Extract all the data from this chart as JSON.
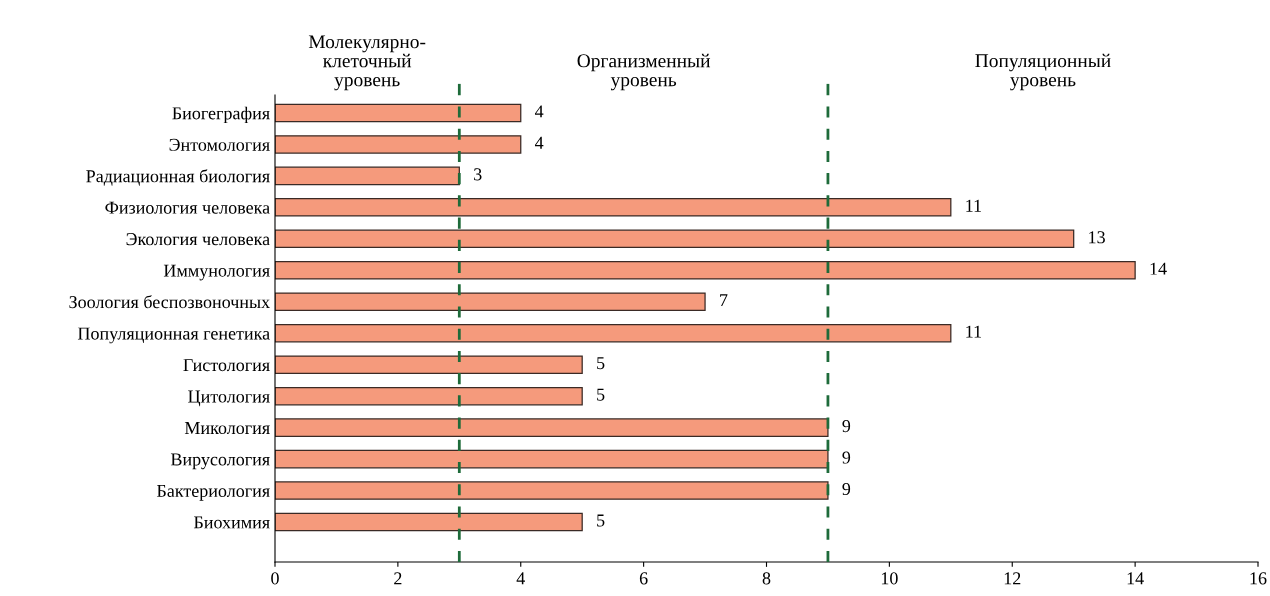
{
  "chart_data": {
    "type": "bar",
    "orientation": "horizontal",
    "categories": [
      "Биогеграфия",
      "Энтомология",
      "Радиационная биология",
      "Физиология человека",
      "Экология человека",
      "Иммунология",
      "Зоология беспозвоночных",
      "Популяционная генетика",
      "Гистология",
      "Цитология",
      "Микология",
      "Вирусология",
      "Бактериология",
      "Биохимия"
    ],
    "values": [
      4,
      4,
      3,
      11,
      13,
      14,
      7,
      11,
      5,
      5,
      9,
      9,
      9,
      5
    ],
    "color": "#f59a7c",
    "data_labels": true,
    "xlim": [
      0,
      16
    ],
    "xticks": [
      0,
      2,
      4,
      6,
      8,
      10,
      12,
      14,
      16
    ],
    "grid": false,
    "ref_lines": [
      {
        "axis": "x",
        "value": 3,
        "color": "#1e6b3a",
        "line_style": "dashed"
      },
      {
        "axis": "x",
        "value": 9,
        "color": "#1e6b3a",
        "line_style": "dashed"
      }
    ],
    "annotations": [
      "Молекулярно-\nклеточный\nуровень",
      "Организменный\nуровень",
      "Популяционный\nуровень"
    ]
  }
}
